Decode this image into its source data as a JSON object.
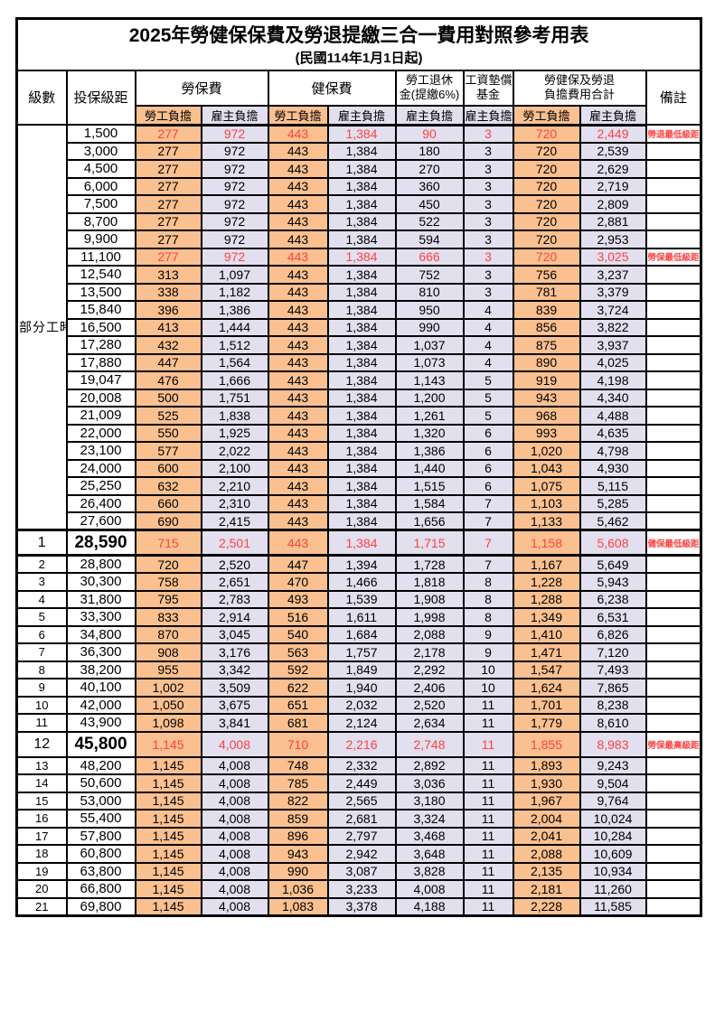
{
  "page": {
    "title": "2025年勞健保保費及勞退提繳三合一費用對照參考用表",
    "subtitle": "(民國114年1月1日起)"
  },
  "table": {
    "headers": {
      "level": "級數",
      "bracket": "投保級距",
      "labor": "勞保費",
      "health": "健保費",
      "pension_l1": "勞工退休",
      "pension_l2": "金(提繳6%)",
      "wage_l1": "工資墊償",
      "wage_l2": "基金",
      "total_l1": "勞健保及勞退",
      "total_l2": "負擔費用合計",
      "remark": "備註",
      "employee": "勞工負擔",
      "employer": "雇主負擔"
    },
    "part_time_label": "部分工時",
    "colors": {
      "employee_bg": "#FAC090",
      "employer_bg": "#E2DFEF",
      "highlight_red": "#FF4242"
    },
    "rows": [
      {
        "level": "",
        "bracket": "1,500",
        "labor_emp": "277",
        "labor_er": "972",
        "health_emp": "443",
        "health_er": "1,384",
        "pension_er": "90",
        "wage_er": "3",
        "total_emp": "720",
        "total_er": "2,449",
        "remark": "勞退最低級距",
        "red": true
      },
      {
        "level": "",
        "bracket": "3,000",
        "labor_emp": "277",
        "labor_er": "972",
        "health_emp": "443",
        "health_er": "1,384",
        "pension_er": "180",
        "wage_er": "3",
        "total_emp": "720",
        "total_er": "2,539",
        "remark": ""
      },
      {
        "level": "",
        "bracket": "4,500",
        "labor_emp": "277",
        "labor_er": "972",
        "health_emp": "443",
        "health_er": "1,384",
        "pension_er": "270",
        "wage_er": "3",
        "total_emp": "720",
        "total_er": "2,629",
        "remark": ""
      },
      {
        "level": "",
        "bracket": "6,000",
        "labor_emp": "277",
        "labor_er": "972",
        "health_emp": "443",
        "health_er": "1,384",
        "pension_er": "360",
        "wage_er": "3",
        "total_emp": "720",
        "total_er": "2,719",
        "remark": ""
      },
      {
        "level": "",
        "bracket": "7,500",
        "labor_emp": "277",
        "labor_er": "972",
        "health_emp": "443",
        "health_er": "1,384",
        "pension_er": "450",
        "wage_er": "3",
        "total_emp": "720",
        "total_er": "2,809",
        "remark": ""
      },
      {
        "level": "",
        "bracket": "8,700",
        "labor_emp": "277",
        "labor_er": "972",
        "health_emp": "443",
        "health_er": "1,384",
        "pension_er": "522",
        "wage_er": "3",
        "total_emp": "720",
        "total_er": "2,881",
        "remark": ""
      },
      {
        "level": "",
        "bracket": "9,900",
        "labor_emp": "277",
        "labor_er": "972",
        "health_emp": "443",
        "health_er": "1,384",
        "pension_er": "594",
        "wage_er": "3",
        "total_emp": "720",
        "total_er": "2,953",
        "remark": ""
      },
      {
        "level": "",
        "bracket": "11,100",
        "labor_emp": "277",
        "labor_er": "972",
        "health_emp": "443",
        "health_er": "1,384",
        "pension_er": "666",
        "wage_er": "3",
        "total_emp": "720",
        "total_er": "3,025",
        "remark": "勞保最低級距",
        "red": true
      },
      {
        "level": "",
        "bracket": "12,540",
        "labor_emp": "313",
        "labor_er": "1,097",
        "health_emp": "443",
        "health_er": "1,384",
        "pension_er": "752",
        "wage_er": "3",
        "total_emp": "756",
        "total_er": "3,237",
        "remark": ""
      },
      {
        "level": "",
        "bracket": "13,500",
        "labor_emp": "338",
        "labor_er": "1,182",
        "health_emp": "443",
        "health_er": "1,384",
        "pension_er": "810",
        "wage_er": "3",
        "total_emp": "781",
        "total_er": "3,379",
        "remark": ""
      },
      {
        "level": "",
        "bracket": "15,840",
        "labor_emp": "396",
        "labor_er": "1,386",
        "health_emp": "443",
        "health_er": "1,384",
        "pension_er": "950",
        "wage_er": "4",
        "total_emp": "839",
        "total_er": "3,724",
        "remark": ""
      },
      {
        "level": "",
        "bracket": "16,500",
        "labor_emp": "413",
        "labor_er": "1,444",
        "health_emp": "443",
        "health_er": "1,384",
        "pension_er": "990",
        "wage_er": "4",
        "total_emp": "856",
        "total_er": "3,822",
        "remark": ""
      },
      {
        "level": "",
        "bracket": "17,280",
        "labor_emp": "432",
        "labor_er": "1,512",
        "health_emp": "443",
        "health_er": "1,384",
        "pension_er": "1,037",
        "wage_er": "4",
        "total_emp": "875",
        "total_er": "3,937",
        "remark": ""
      },
      {
        "level": "",
        "bracket": "17,880",
        "labor_emp": "447",
        "labor_er": "1,564",
        "health_emp": "443",
        "health_er": "1,384",
        "pension_er": "1,073",
        "wage_er": "4",
        "total_emp": "890",
        "total_er": "4,025",
        "remark": ""
      },
      {
        "level": "",
        "bracket": "19,047",
        "labor_emp": "476",
        "labor_er": "1,666",
        "health_emp": "443",
        "health_er": "1,384",
        "pension_er": "1,143",
        "wage_er": "5",
        "total_emp": "919",
        "total_er": "4,198",
        "remark": ""
      },
      {
        "level": "",
        "bracket": "20,008",
        "labor_emp": "500",
        "labor_er": "1,751",
        "health_emp": "443",
        "health_er": "1,384",
        "pension_er": "1,200",
        "wage_er": "5",
        "total_emp": "943",
        "total_er": "4,340",
        "remark": ""
      },
      {
        "level": "",
        "bracket": "21,009",
        "labor_emp": "525",
        "labor_er": "1,838",
        "health_emp": "443",
        "health_er": "1,384",
        "pension_er": "1,261",
        "wage_er": "5",
        "total_emp": "968",
        "total_er": "4,488",
        "remark": ""
      },
      {
        "level": "",
        "bracket": "22,000",
        "labor_emp": "550",
        "labor_er": "1,925",
        "health_emp": "443",
        "health_er": "1,384",
        "pension_er": "1,320",
        "wage_er": "6",
        "total_emp": "993",
        "total_er": "4,635",
        "remark": ""
      },
      {
        "level": "",
        "bracket": "23,100",
        "labor_emp": "577",
        "labor_er": "2,022",
        "health_emp": "443",
        "health_er": "1,384",
        "pension_er": "1,386",
        "wage_er": "6",
        "total_emp": "1,020",
        "total_er": "4,798",
        "remark": ""
      },
      {
        "level": "",
        "bracket": "24,000",
        "labor_emp": "600",
        "labor_er": "2,100",
        "health_emp": "443",
        "health_er": "1,384",
        "pension_er": "1,440",
        "wage_er": "6",
        "total_emp": "1,043",
        "total_er": "4,930",
        "remark": ""
      },
      {
        "level": "",
        "bracket": "25,250",
        "labor_emp": "632",
        "labor_er": "2,210",
        "health_emp": "443",
        "health_er": "1,384",
        "pension_er": "1,515",
        "wage_er": "6",
        "total_emp": "1,075",
        "total_er": "5,115",
        "remark": ""
      },
      {
        "level": "",
        "bracket": "26,400",
        "labor_emp": "660",
        "labor_er": "2,310",
        "health_emp": "443",
        "health_er": "1,384",
        "pension_er": "1,584",
        "wage_er": "7",
        "total_emp": "1,103",
        "total_er": "5,285",
        "remark": ""
      },
      {
        "level": "",
        "bracket": "27,600",
        "labor_emp": "690",
        "labor_er": "2,415",
        "health_emp": "443",
        "health_er": "1,384",
        "pension_er": "1,656",
        "wage_er": "7",
        "total_emp": "1,133",
        "total_er": "5,462",
        "remark": ""
      },
      {
        "level": "1",
        "bracket": "28,590",
        "labor_emp": "715",
        "labor_er": "2,501",
        "health_emp": "443",
        "health_er": "1,384",
        "pension_er": "1,715",
        "wage_er": "7",
        "total_emp": "1,158",
        "total_er": "5,608",
        "remark": "健保最低級距",
        "red": true,
        "big": true
      },
      {
        "level": "2",
        "bracket": "28,800",
        "labor_emp": "720",
        "labor_er": "2,520",
        "health_emp": "447",
        "health_er": "1,394",
        "pension_er": "1,728",
        "wage_er": "7",
        "total_emp": "1,167",
        "total_er": "5,649",
        "remark": ""
      },
      {
        "level": "3",
        "bracket": "30,300",
        "labor_emp": "758",
        "labor_er": "2,651",
        "health_emp": "470",
        "health_er": "1,466",
        "pension_er": "1,818",
        "wage_er": "8",
        "total_emp": "1,228",
        "total_er": "5,943",
        "remark": ""
      },
      {
        "level": "4",
        "bracket": "31,800",
        "labor_emp": "795",
        "labor_er": "2,783",
        "health_emp": "493",
        "health_er": "1,539",
        "pension_er": "1,908",
        "wage_er": "8",
        "total_emp": "1,288",
        "total_er": "6,238",
        "remark": ""
      },
      {
        "level": "5",
        "bracket": "33,300",
        "labor_emp": "833",
        "labor_er": "2,914",
        "health_emp": "516",
        "health_er": "1,611",
        "pension_er": "1,998",
        "wage_er": "8",
        "total_emp": "1,349",
        "total_er": "6,531",
        "remark": ""
      },
      {
        "level": "6",
        "bracket": "34,800",
        "labor_emp": "870",
        "labor_er": "3,045",
        "health_emp": "540",
        "health_er": "1,684",
        "pension_er": "2,088",
        "wage_er": "9",
        "total_emp": "1,410",
        "total_er": "6,826",
        "remark": ""
      },
      {
        "level": "7",
        "bracket": "36,300",
        "labor_emp": "908",
        "labor_er": "3,176",
        "health_emp": "563",
        "health_er": "1,757",
        "pension_er": "2,178",
        "wage_er": "9",
        "total_emp": "1,471",
        "total_er": "7,120",
        "remark": ""
      },
      {
        "level": "8",
        "bracket": "38,200",
        "labor_emp": "955",
        "labor_er": "3,342",
        "health_emp": "592",
        "health_er": "1,849",
        "pension_er": "2,292",
        "wage_er": "10",
        "total_emp": "1,547",
        "total_er": "7,493",
        "remark": ""
      },
      {
        "level": "9",
        "bracket": "40,100",
        "labor_emp": "1,002",
        "labor_er": "3,509",
        "health_emp": "622",
        "health_er": "1,940",
        "pension_er": "2,406",
        "wage_er": "10",
        "total_emp": "1,624",
        "total_er": "7,865",
        "remark": ""
      },
      {
        "level": "10",
        "bracket": "42,000",
        "labor_emp": "1,050",
        "labor_er": "3,675",
        "health_emp": "651",
        "health_er": "2,032",
        "pension_er": "2,520",
        "wage_er": "11",
        "total_emp": "1,701",
        "total_er": "8,238",
        "remark": ""
      },
      {
        "level": "11",
        "bracket": "43,900",
        "labor_emp": "1,098",
        "labor_er": "3,841",
        "health_emp": "681",
        "health_er": "2,124",
        "pension_er": "2,634",
        "wage_er": "11",
        "total_emp": "1,779",
        "total_er": "8,610",
        "remark": ""
      },
      {
        "level": "12",
        "bracket": "45,800",
        "labor_emp": "1,145",
        "labor_er": "4,008",
        "health_emp": "710",
        "health_er": "2,216",
        "pension_er": "2,748",
        "wage_er": "11",
        "total_emp": "1,855",
        "total_er": "8,983",
        "remark": "勞保最高級距",
        "red": true,
        "big": true
      },
      {
        "level": "13",
        "bracket": "48,200",
        "labor_emp": "1,145",
        "labor_er": "4,008",
        "health_emp": "748",
        "health_er": "2,332",
        "pension_er": "2,892",
        "wage_er": "11",
        "total_emp": "1,893",
        "total_er": "9,243",
        "remark": ""
      },
      {
        "level": "14",
        "bracket": "50,600",
        "labor_emp": "1,145",
        "labor_er": "4,008",
        "health_emp": "785",
        "health_er": "2,449",
        "pension_er": "3,036",
        "wage_er": "11",
        "total_emp": "1,930",
        "total_er": "9,504",
        "remark": ""
      },
      {
        "level": "15",
        "bracket": "53,000",
        "labor_emp": "1,145",
        "labor_er": "4,008",
        "health_emp": "822",
        "health_er": "2,565",
        "pension_er": "3,180",
        "wage_er": "11",
        "total_emp": "1,967",
        "total_er": "9,764",
        "remark": ""
      },
      {
        "level": "16",
        "bracket": "55,400",
        "labor_emp": "1,145",
        "labor_er": "4,008",
        "health_emp": "859",
        "health_er": "2,681",
        "pension_er": "3,324",
        "wage_er": "11",
        "total_emp": "2,004",
        "total_er": "10,024",
        "remark": ""
      },
      {
        "level": "17",
        "bracket": "57,800",
        "labor_emp": "1,145",
        "labor_er": "4,008",
        "health_emp": "896",
        "health_er": "2,797",
        "pension_er": "3,468",
        "wage_er": "11",
        "total_emp": "2,041",
        "total_er": "10,284",
        "remark": ""
      },
      {
        "level": "18",
        "bracket": "60,800",
        "labor_emp": "1,145",
        "labor_er": "4,008",
        "health_emp": "943",
        "health_er": "2,942",
        "pension_er": "3,648",
        "wage_er": "11",
        "total_emp": "2,088",
        "total_er": "10,609",
        "remark": ""
      },
      {
        "level": "19",
        "bracket": "63,800",
        "labor_emp": "1,145",
        "labor_er": "4,008",
        "health_emp": "990",
        "health_er": "3,087",
        "pension_er": "3,828",
        "wage_er": "11",
        "total_emp": "2,135",
        "total_er": "10,934",
        "remark": ""
      },
      {
        "level": "20",
        "bracket": "66,800",
        "labor_emp": "1,145",
        "labor_er": "4,008",
        "health_emp": "1,036",
        "health_er": "3,233",
        "pension_er": "4,008",
        "wage_er": "11",
        "total_emp": "2,181",
        "total_er": "11,260",
        "remark": ""
      },
      {
        "level": "21",
        "bracket": "69,800",
        "labor_emp": "1,145",
        "labor_er": "4,008",
        "health_emp": "1,083",
        "health_er": "3,378",
        "pension_er": "4,188",
        "wage_er": "11",
        "total_emp": "2,228",
        "total_er": "11,585",
        "remark": ""
      }
    ]
  }
}
